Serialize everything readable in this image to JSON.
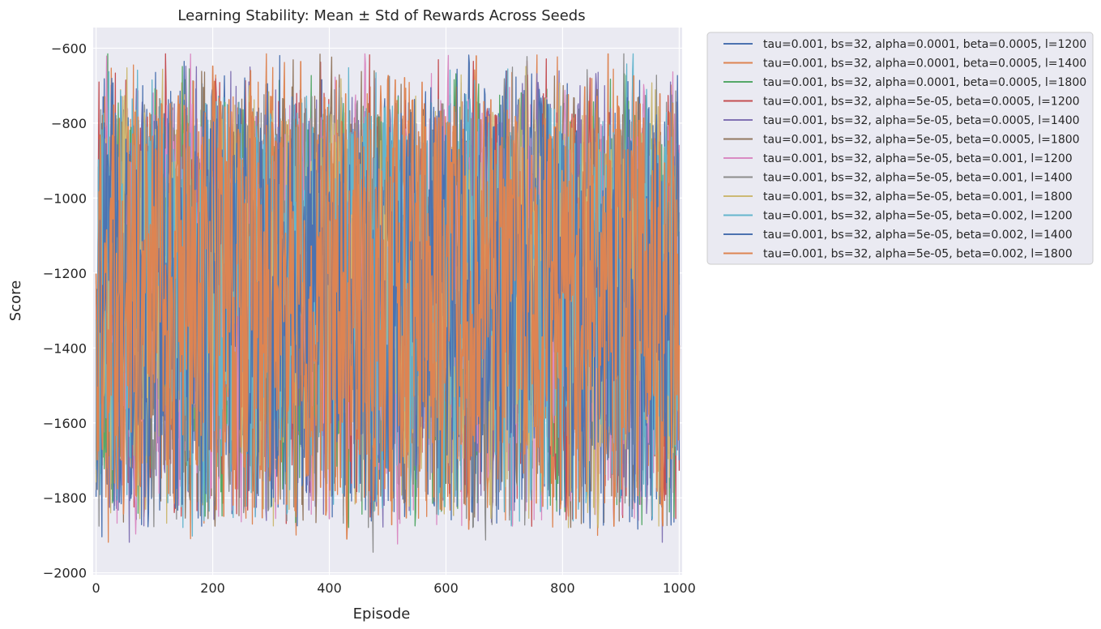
{
  "chart_data": {
    "type": "line",
    "title": "Learning Stability: Mean ± Std of Rewards Across Seeds",
    "xlabel": "Episode",
    "ylabel": "Score",
    "xlim": [
      -5,
      1005
    ],
    "ylim": [
      -2005,
      -545
    ],
    "xticks": [
      0,
      200,
      400,
      600,
      800,
      1000
    ],
    "yticks": [
      -2000,
      -1800,
      -1600,
      -1400,
      -1200,
      -1000,
      -800,
      -600
    ],
    "grid": true,
    "legend_position": "outside-right",
    "episodes": 1000,
    "series": [
      {
        "name": "tau=0.001, bs=32, alpha=0.0001, beta=0.0005, l=1200",
        "color": "#4c72b0",
        "seed": 11
      },
      {
        "name": "tau=0.001, bs=32, alpha=0.0001, beta=0.0005, l=1400",
        "color": "#dd8452",
        "seed": 23
      },
      {
        "name": "tau=0.001, bs=32, alpha=0.0001, beta=0.0005, l=1800",
        "color": "#55a868",
        "seed": 37
      },
      {
        "name": "tau=0.001, bs=32, alpha=5e-05, beta=0.0005, l=1200",
        "color": "#c44e52",
        "seed": 41
      },
      {
        "name": "tau=0.001, bs=32, alpha=5e-05, beta=0.0005, l=1400",
        "color": "#8172b3",
        "seed": 53
      },
      {
        "name": "tau=0.001, bs=32, alpha=5e-05, beta=0.0005, l=1800",
        "color": "#937860",
        "seed": 67
      },
      {
        "name": "tau=0.001, bs=32, alpha=5e-05, beta=0.001, l=1200",
        "color": "#da8bc3",
        "seed": 71
      },
      {
        "name": "tau=0.001, bs=32, alpha=5e-05, beta=0.001, l=1400",
        "color": "#8c8c8c",
        "seed": 83
      },
      {
        "name": "tau=0.001, bs=32, alpha=5e-05, beta=0.001, l=1800",
        "color": "#ccb974",
        "seed": 97
      },
      {
        "name": "tau=0.001, bs=32, alpha=5e-05, beta=0.002, l=1200",
        "color": "#64b5cd",
        "seed": 101
      },
      {
        "name": "tau=0.001, bs=32, alpha=5e-05, beta=0.002, l=1400",
        "color": "#4c72b0",
        "seed": 113
      },
      {
        "name": "tau=0.001, bs=32, alpha=5e-05, beta=0.002, l=1800",
        "color": "#dd8452",
        "seed": 127
      }
    ],
    "typical_range": [
      -1900,
      -620
    ],
    "typical_mean": -1300
  }
}
